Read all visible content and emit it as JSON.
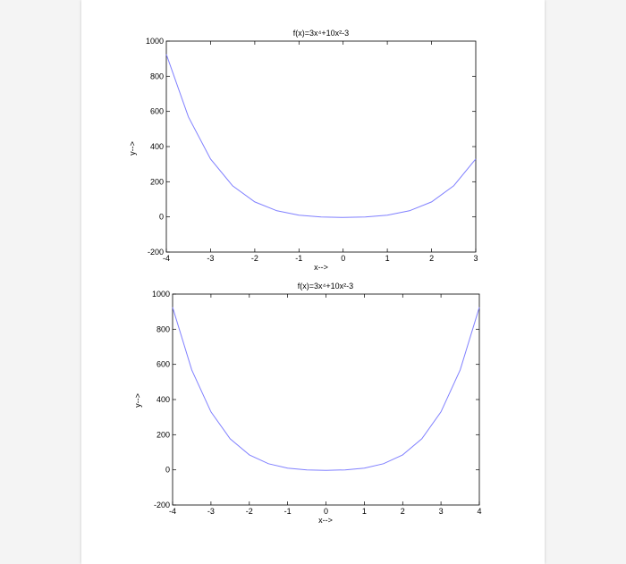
{
  "chart_data": [
    {
      "type": "line",
      "title": "f(x)=3x⁴+10x²-3",
      "xlabel": "x-->",
      "ylabel": "y-->",
      "xlim": [
        -4,
        3
      ],
      "ylim": [
        -200,
        1000
      ],
      "xticks": [
        "-4",
        "-3",
        "-2",
        "-1",
        "0",
        "1",
        "2",
        "3"
      ],
      "yticks": [
        "-200",
        "0",
        "200",
        "400",
        "600",
        "800",
        "1000"
      ],
      "grid": false,
      "series_color": "#8080ff",
      "x": [
        -4,
        -3.5,
        -3,
        -2.5,
        -2,
        -1.5,
        -1,
        -0.5,
        0,
        0.5,
        1,
        1.5,
        2,
        2.5,
        3
      ],
      "y": [
        925,
        569,
        330,
        176.7,
        85,
        34.7,
        10,
        -0.3,
        -3,
        -0.3,
        10,
        34.7,
        85,
        176.7,
        330
      ]
    },
    {
      "type": "line",
      "title": "f(x)=3x⁴+10x²-3",
      "xlabel": "x-->",
      "ylabel": "y-->",
      "xlim": [
        -4,
        4
      ],
      "ylim": [
        -200,
        1000
      ],
      "xticks": [
        "-4",
        "-3",
        "-2",
        "-1",
        "0",
        "1",
        "2",
        "3",
        "4"
      ],
      "yticks": [
        "-200",
        "0",
        "200",
        "400",
        "600",
        "800",
        "1000"
      ],
      "grid": false,
      "series_color": "#8080ff",
      "x": [
        -4,
        -3.5,
        -3,
        -2.5,
        -2,
        -1.5,
        -1,
        -0.5,
        0,
        0.5,
        1,
        1.5,
        2,
        2.5,
        3,
        3.5,
        4
      ],
      "y": [
        925,
        569,
        330,
        176.7,
        85,
        34.7,
        10,
        -0.3,
        -3,
        -0.3,
        10,
        34.7,
        85,
        176.7,
        330,
        569,
        925
      ]
    }
  ]
}
